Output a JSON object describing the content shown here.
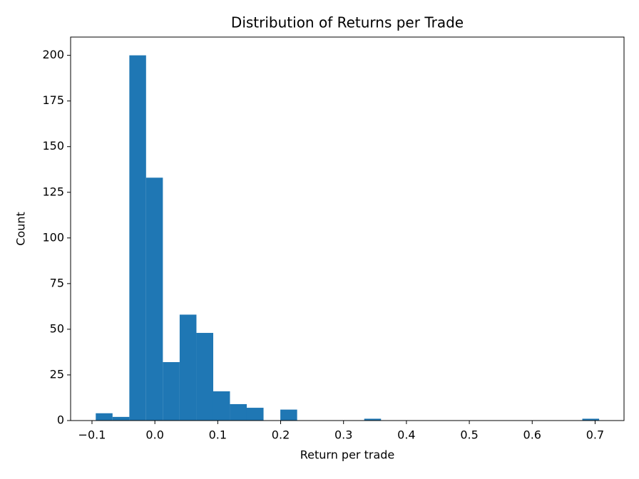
{
  "chart_data": {
    "type": "histogram",
    "title": "Distribution of Returns per Trade",
    "x_label": "Return per trade",
    "y_label": "Count",
    "color": "#1f77b4",
    "bins": [
      -0.094,
      -0.0673,
      -0.0406,
      -0.014,
      0.0127,
      0.0394,
      0.0661,
      0.0928,
      0.1194,
      0.1461,
      0.1728,
      0.1995,
      0.2262,
      0.2528,
      0.2795,
      0.3062,
      0.3329,
      0.3596,
      0.3862,
      0.4129,
      0.4396,
      0.4663,
      0.493,
      0.5196,
      0.5463,
      0.573,
      0.5997,
      0.6264,
      0.653,
      0.6797,
      0.7064
    ],
    "counts": [
      4,
      2,
      200,
      133,
      32,
      58,
      48,
      16,
      9,
      7,
      0,
      6,
      0,
      0,
      0,
      0,
      1,
      0,
      0,
      0,
      0,
      0,
      0,
      0,
      0,
      0,
      0,
      0,
      0,
      1
    ],
    "xlim": [
      -0.134,
      0.746
    ],
    "ylim": [
      0,
      210
    ],
    "xticks": [
      {
        "value": -0.1,
        "label": "−0.1"
      },
      {
        "value": 0,
        "label": "0.0"
      },
      0.1,
      0.2,
      0.3,
      0.4,
      0.5,
      0.6,
      0.7
    ],
    "yticks": [
      0,
      25,
      50,
      75,
      100,
      125,
      150,
      175,
      200
    ]
  }
}
